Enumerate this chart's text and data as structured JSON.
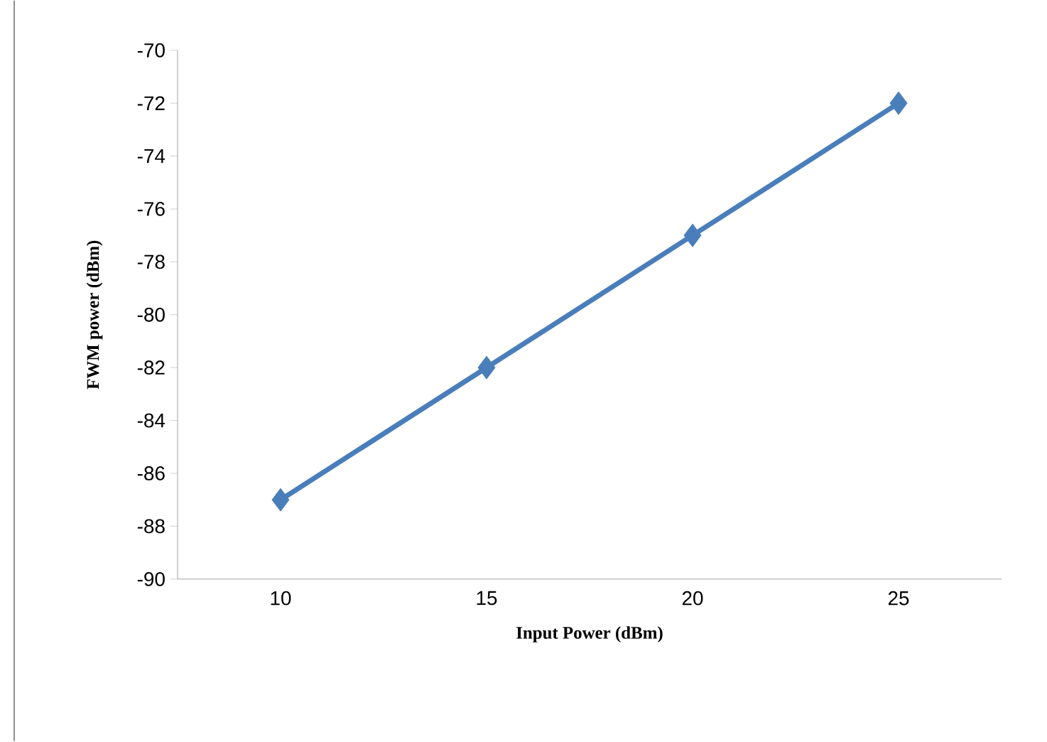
{
  "chart_data": {
    "type": "line",
    "xlabel": "Input Power (dBm)",
    "ylabel": "FWM power (dBm)",
    "categories": [
      "10",
      "15",
      "20",
      "25"
    ],
    "series": [
      {
        "color": "#4a7ebb",
        "values": [
          -87,
          -82,
          -77,
          -72
        ]
      }
    ],
    "ylim": [
      -90,
      -70
    ],
    "yticks": [
      -90,
      -88,
      -86,
      -84,
      -82,
      -80,
      -78,
      -76,
      -74,
      -72,
      -70
    ],
    "marker": "diamond",
    "line_style": "solid"
  }
}
